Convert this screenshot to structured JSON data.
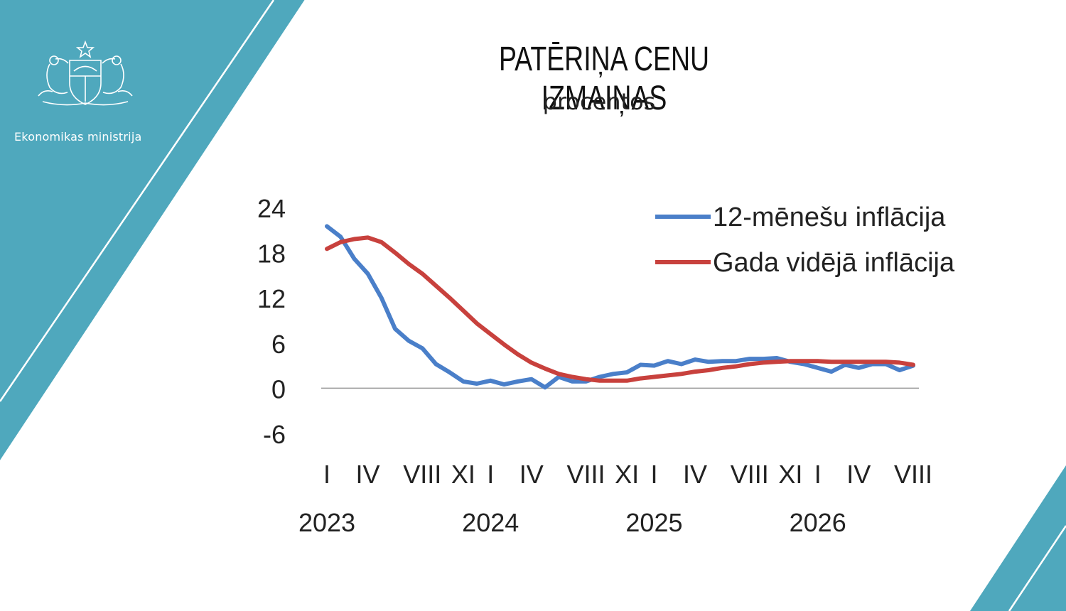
{
  "header": {
    "organization": "Ekonomikas ministrija",
    "title": "PATĒRIŅA CENU IZMAIŅAS",
    "subtitle": "procentos"
  },
  "colors": {
    "accent": "#4fa8bd",
    "series_12m": "#4a7fc9",
    "series_avg": "#c8413d",
    "zero_line": "#999999"
  },
  "icons": {
    "logo": "latvian-coat-of-arms-icon"
  },
  "chart_data": {
    "type": "line",
    "title": "PATĒRIŅA CENU IZMAIŅAS",
    "subtitle": "procentos",
    "ylim": [
      -6,
      24
    ],
    "yticks": [
      "24",
      "18",
      "12",
      "6",
      "0",
      "-6"
    ],
    "month_ticks": [
      {
        "label": "I",
        "index": 0
      },
      {
        "label": "IV",
        "index": 3
      },
      {
        "label": "VIII",
        "index": 7
      },
      {
        "label": "XI",
        "index": 10
      },
      {
        "label": "I",
        "index": 12
      },
      {
        "label": "IV",
        "index": 15
      },
      {
        "label": "VIII",
        "index": 19
      },
      {
        "label": "XI",
        "index": 22
      },
      {
        "label": "I",
        "index": 24
      },
      {
        "label": "IV",
        "index": 27
      },
      {
        "label": "VIII",
        "index": 31
      },
      {
        "label": "XI",
        "index": 34
      },
      {
        "label": "I",
        "index": 36
      },
      {
        "label": "IV",
        "index": 39
      },
      {
        "label": "VIII",
        "index": 43
      }
    ],
    "year_ticks": [
      {
        "label": "2023",
        "index": 0
      },
      {
        "label": "2024",
        "index": 12
      },
      {
        "label": "2025",
        "index": 24
      },
      {
        "label": "2026",
        "index": 36
      }
    ],
    "grid": false,
    "legend_position": "top-right",
    "series": [
      {
        "name": "12-mēnešu inflācija",
        "color": "#4a7fc9",
        "values": [
          21.5,
          20.1,
          17.2,
          15.2,
          12.0,
          7.9,
          6.3,
          5.3,
          3.2,
          2.1,
          0.9,
          0.6,
          1.0,
          0.5,
          0.9,
          1.2,
          0.1,
          1.5,
          0.9,
          0.9,
          1.5,
          1.9,
          2.1,
          3.1,
          3.0,
          3.6,
          3.2,
          3.8,
          3.5,
          3.6,
          3.6,
          3.9,
          3.9,
          4.0,
          3.5,
          3.2,
          2.7,
          2.2,
          3.1,
          2.7,
          3.2,
          3.2,
          2.4,
          3.0
        ]
      },
      {
        "name": "Gada vidējā inflācija",
        "color": "#c8413d",
        "values": [
          18.5,
          19.4,
          19.8,
          20.0,
          19.4,
          18.0,
          16.5,
          15.2,
          13.6,
          12.0,
          10.3,
          8.6,
          7.2,
          5.8,
          4.5,
          3.4,
          2.6,
          1.9,
          1.5,
          1.2,
          1.0,
          1.0,
          1.0,
          1.3,
          1.5,
          1.7,
          1.9,
          2.2,
          2.4,
          2.7,
          2.9,
          3.2,
          3.4,
          3.5,
          3.6,
          3.6,
          3.6,
          3.5,
          3.5,
          3.5,
          3.5,
          3.5,
          3.4,
          3.1
        ]
      }
    ]
  }
}
